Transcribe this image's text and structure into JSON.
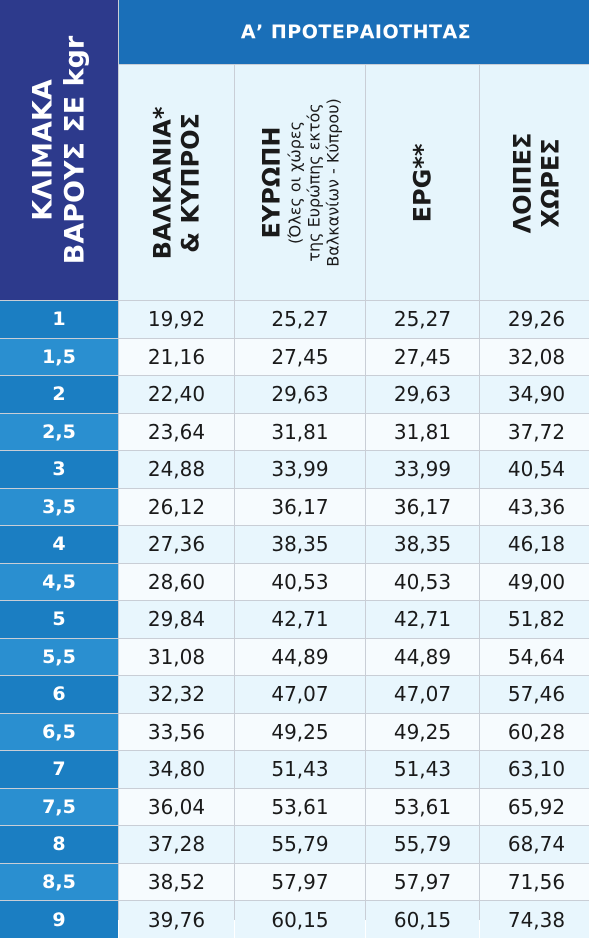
{
  "header": {
    "weight_scale_line1": "ΚΛΙΜΑΚΑ",
    "weight_scale_line2": "ΒΑΡΟΥΣ ΣΕ kgr",
    "priority_title": "Α’ ΠΡΟΤΕΡΑΙΟΤΗΤΑΣ",
    "columns": [
      {
        "line1": "ΒΑΛΚΑΝΙΑ*",
        "line2": "& ΚΥΠΡΟΣ"
      },
      {
        "line1": "ΕΥΡΩΠΗ",
        "line2": "(Όλες οι χώρες",
        "line3": "της Ευρώπης εκτός",
        "line4": "Βαλκανίων - Κύπρου)"
      },
      {
        "line1": "EPG**"
      },
      {
        "line1": "ΛΟΙΠΕΣ",
        "line2": "ΧΩΡΕΣ"
      }
    ]
  },
  "rows": [
    {
      "weight": "1",
      "balkans": "19,92",
      "europe": "25,27",
      "epg": "25,27",
      "other": "29,26"
    },
    {
      "weight": "1,5",
      "balkans": "21,16",
      "europe": "27,45",
      "epg": "27,45",
      "other": "32,08"
    },
    {
      "weight": "2",
      "balkans": "22,40",
      "europe": "29,63",
      "epg": "29,63",
      "other": "34,90"
    },
    {
      "weight": "2,5",
      "balkans": "23,64",
      "europe": "31,81",
      "epg": "31,81",
      "other": "37,72"
    },
    {
      "weight": "3",
      "balkans": "24,88",
      "europe": "33,99",
      "epg": "33,99",
      "other": "40,54"
    },
    {
      "weight": "3,5",
      "balkans": "26,12",
      "europe": "36,17",
      "epg": "36,17",
      "other": "43,36"
    },
    {
      "weight": "4",
      "balkans": "27,36",
      "europe": "38,35",
      "epg": "38,35",
      "other": "46,18"
    },
    {
      "weight": "4,5",
      "balkans": "28,60",
      "europe": "40,53",
      "epg": "40,53",
      "other": "49,00"
    },
    {
      "weight": "5",
      "balkans": "29,84",
      "europe": "42,71",
      "epg": "42,71",
      "other": "51,82"
    },
    {
      "weight": "5,5",
      "balkans": "31,08",
      "europe": "44,89",
      "epg": "44,89",
      "other": "54,64"
    },
    {
      "weight": "6",
      "balkans": "32,32",
      "europe": "47,07",
      "epg": "47,07",
      "other": "57,46"
    },
    {
      "weight": "6,5",
      "balkans": "33,56",
      "europe": "49,25",
      "epg": "49,25",
      "other": "60,28"
    },
    {
      "weight": "7",
      "balkans": "34,80",
      "europe": "51,43",
      "epg": "51,43",
      "other": "63,10"
    },
    {
      "weight": "7,5",
      "balkans": "36,04",
      "europe": "53,61",
      "epg": "53,61",
      "other": "65,92"
    },
    {
      "weight": "8",
      "balkans": "37,28",
      "europe": "55,79",
      "epg": "55,79",
      "other": "68,74"
    },
    {
      "weight": "8,5",
      "balkans": "38,52",
      "europe": "57,97",
      "epg": "57,97",
      "other": "71,56"
    },
    {
      "weight": "9",
      "balkans": "39,76",
      "europe": "60,15",
      "epg": "60,15",
      "other": "74,38"
    }
  ],
  "colors": {
    "weight_header_bg": "#2d3a8c",
    "priority_header_bg": "#1a6fb8",
    "weight_cell_bg": "#1b7ec2",
    "value_cell_bg": "#e8f6fd"
  }
}
